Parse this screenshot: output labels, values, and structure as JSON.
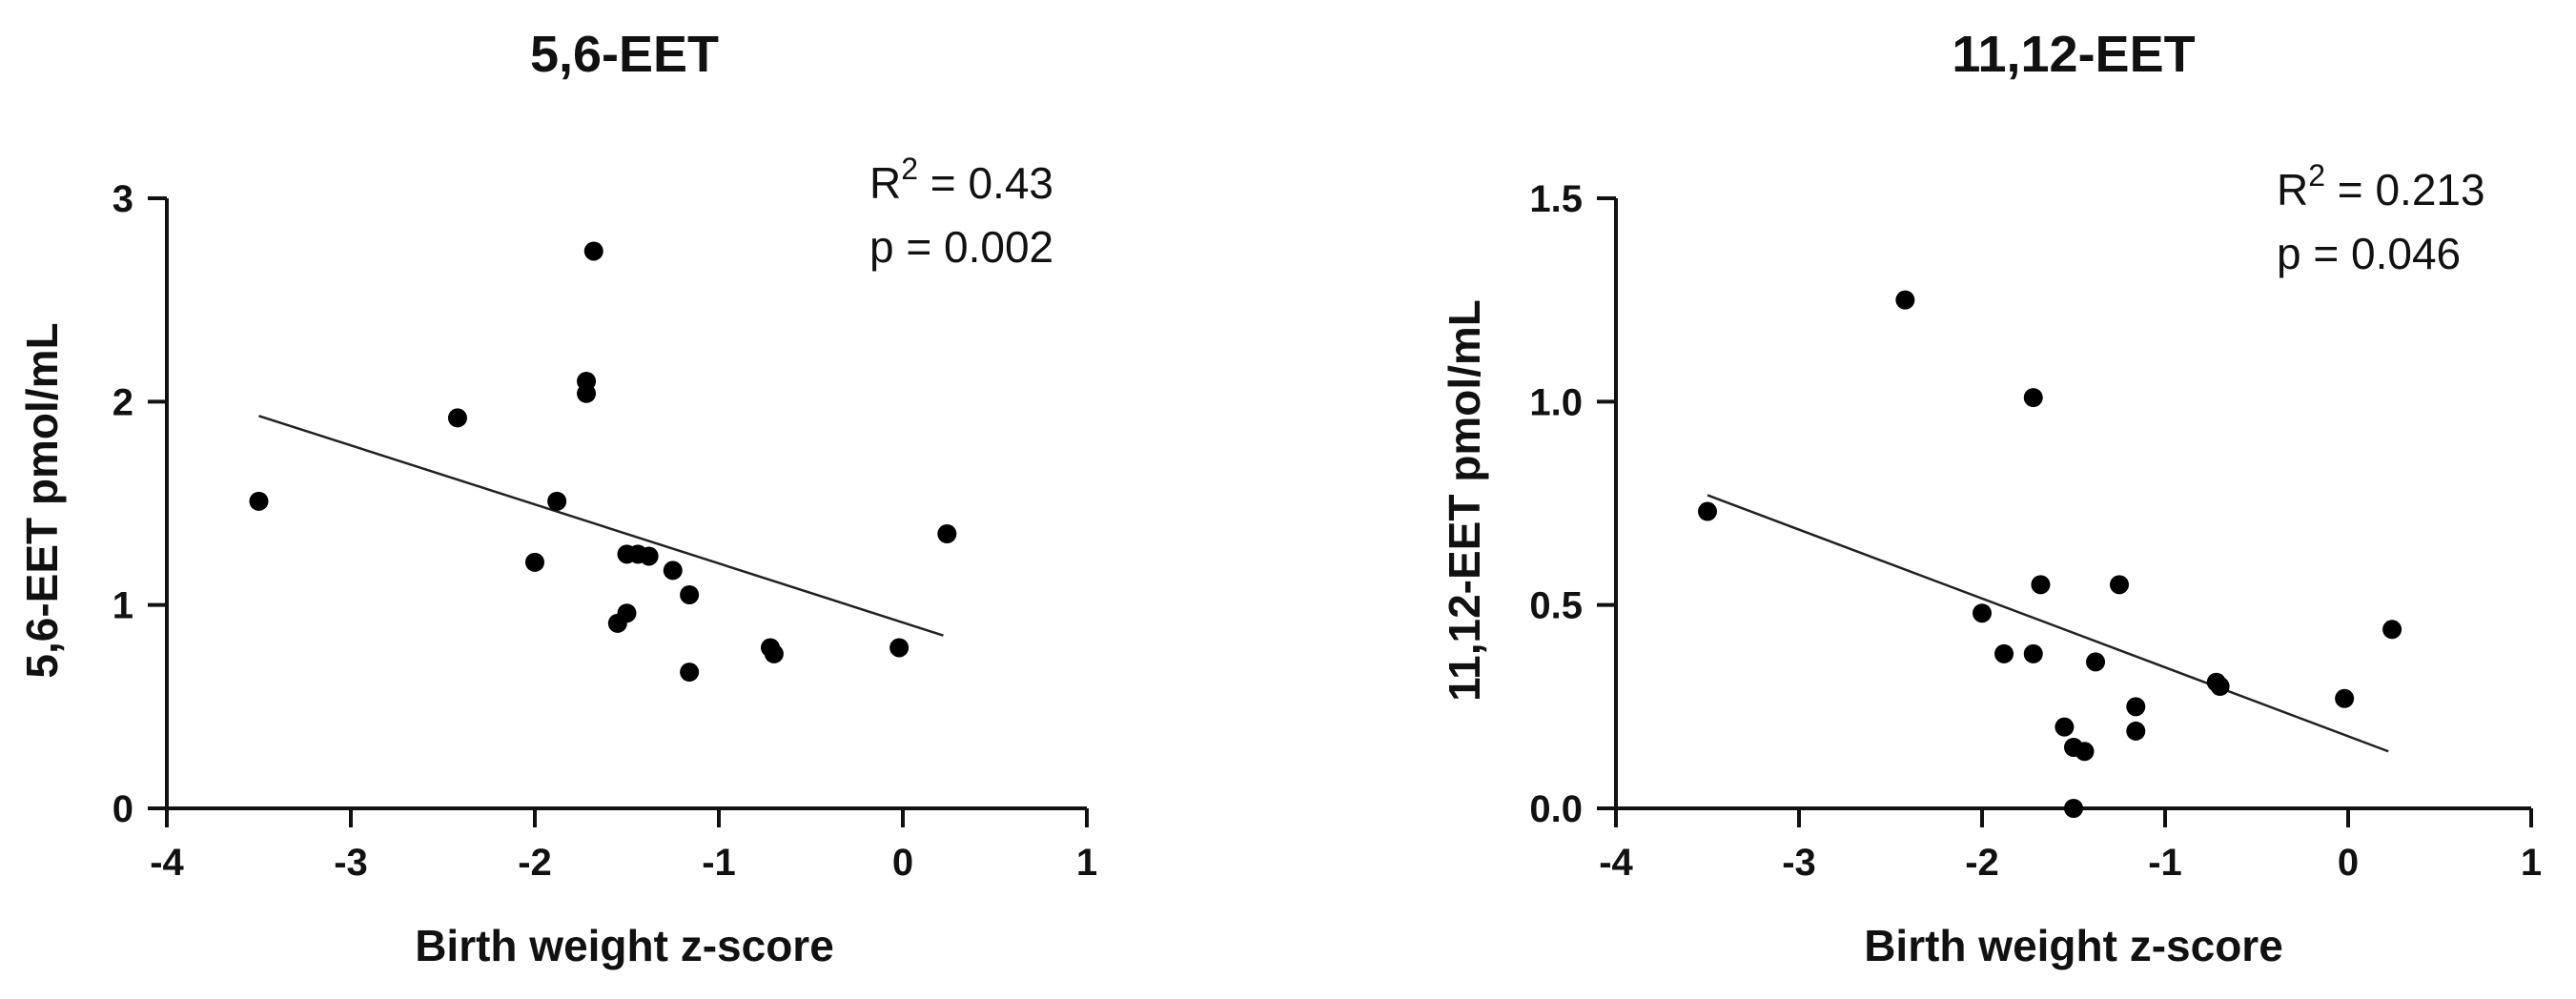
{
  "chart_data": [
    {
      "type": "scatter",
      "title": "5,6-EET",
      "xlabel": "Birth weight z-score",
      "ylabel": "5,6-EET pmol/mL",
      "xlim": [
        -4,
        1
      ],
      "ylim": [
        0,
        3
      ],
      "xticks": [
        "-4",
        "-3",
        "-2",
        "-1",
        "0",
        "1"
      ],
      "yticks": [
        "0",
        "1",
        "2",
        "3"
      ],
      "stats": {
        "r2_prefix": "R",
        "r2_sup": "2",
        "r2_value": " = 0.43",
        "p": "p = 0.002"
      },
      "grid": false,
      "legend": "none",
      "points": [
        {
          "x": -3.5,
          "y": 1.51
        },
        {
          "x": -2.42,
          "y": 1.92
        },
        {
          "x": -2.0,
          "y": 1.21
        },
        {
          "x": -1.88,
          "y": 1.51
        },
        {
          "x": -1.72,
          "y": 2.1
        },
        {
          "x": -1.72,
          "y": 2.04
        },
        {
          "x": -1.68,
          "y": 2.74
        },
        {
          "x": -1.55,
          "y": 0.91
        },
        {
          "x": -1.5,
          "y": 0.96
        },
        {
          "x": -1.5,
          "y": 1.25
        },
        {
          "x": -1.44,
          "y": 1.25
        },
        {
          "x": -1.38,
          "y": 1.24
        },
        {
          "x": -1.25,
          "y": 1.17
        },
        {
          "x": -1.16,
          "y": 1.05
        },
        {
          "x": -1.16,
          "y": 0.67
        },
        {
          "x": -0.72,
          "y": 0.79
        },
        {
          "x": -0.7,
          "y": 0.76
        },
        {
          "x": -0.02,
          "y": 0.79
        },
        {
          "x": 0.24,
          "y": 1.35
        }
      ],
      "fit_line": {
        "x": [
          -3.5,
          0.22
        ],
        "y": [
          1.93,
          0.85
        ]
      }
    },
    {
      "type": "scatter",
      "title": "11,12-EET",
      "xlabel": "Birth weight z-score",
      "ylabel": "11,12-EET pmol/mL",
      "xlim": [
        -4,
        1
      ],
      "ylim": [
        0,
        1.5
      ],
      "xticks": [
        "-4",
        "-3",
        "-2",
        "-1",
        "0",
        "1"
      ],
      "yticks": [
        "0.0",
        "0.5",
        "1.0",
        "1.5"
      ],
      "stats": {
        "r2_prefix": "R",
        "r2_sup": "2",
        "r2_value": " = 0.213",
        "p": "p = 0.046"
      },
      "grid": false,
      "legend": "none",
      "points": [
        {
          "x": -3.5,
          "y": 0.73
        },
        {
          "x": -2.42,
          "y": 1.25
        },
        {
          "x": -2.0,
          "y": 0.48
        },
        {
          "x": -1.88,
          "y": 0.38
        },
        {
          "x": -1.72,
          "y": 0.38
        },
        {
          "x": -1.72,
          "y": 1.01
        },
        {
          "x": -1.68,
          "y": 0.55
        },
        {
          "x": -1.55,
          "y": 0.2
        },
        {
          "x": -1.5,
          "y": 0.15
        },
        {
          "x": -1.44,
          "y": 0.14
        },
        {
          "x": -1.38,
          "y": 0.36
        },
        {
          "x": -1.5,
          "y": 0.0
        },
        {
          "x": -1.25,
          "y": 0.55
        },
        {
          "x": -1.16,
          "y": 0.25
        },
        {
          "x": -1.16,
          "y": 0.19
        },
        {
          "x": -0.72,
          "y": 0.31
        },
        {
          "x": -0.7,
          "y": 0.3
        },
        {
          "x": -0.02,
          "y": 0.27
        },
        {
          "x": 0.24,
          "y": 0.44
        }
      ],
      "fit_line": {
        "x": [
          -3.5,
          0.22
        ],
        "y": [
          0.77,
          0.14
        ]
      }
    }
  ]
}
